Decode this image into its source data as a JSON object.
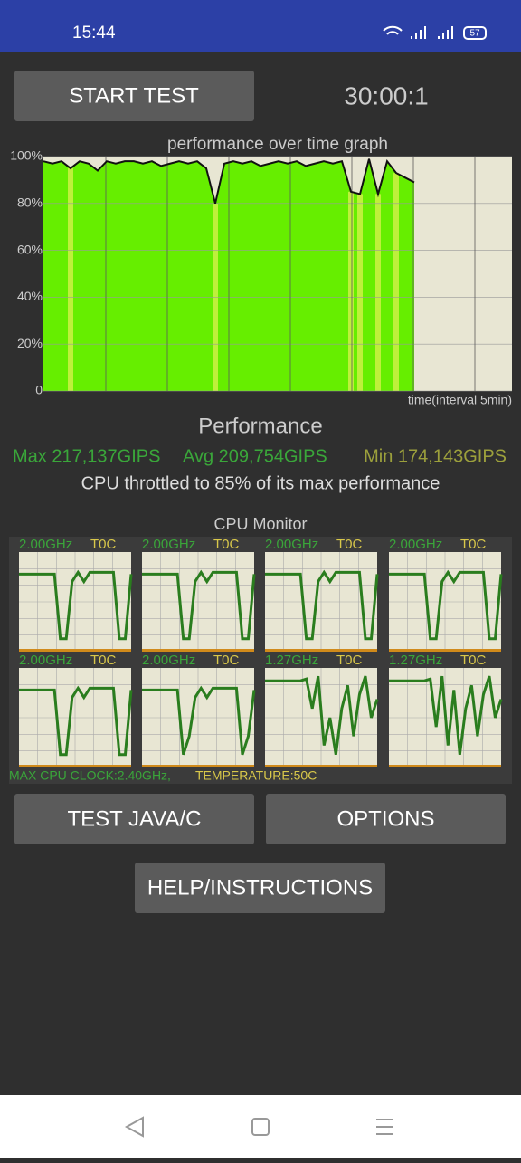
{
  "status_bar": {
    "time": "15:44",
    "battery": "57"
  },
  "start_button": "START TEST",
  "timer": "30:00:1",
  "performance_graph": {
    "type": "line",
    "title": "performance over time graph",
    "x_label": "time(interval 5min)",
    "ylim": [
      0,
      100
    ],
    "yticks": [
      {
        "value": 100,
        "label": "100%"
      },
      {
        "value": 80,
        "label": "80%"
      },
      {
        "value": 60,
        "label": "60%"
      },
      {
        "value": 40,
        "label": "40%"
      },
      {
        "value": 20,
        "label": "20%"
      },
      0
    ],
    "color": "#66ee00",
    "values": [
      98,
      97,
      98,
      95,
      98,
      97,
      94,
      98,
      97,
      98,
      98,
      97,
      98,
      96,
      97,
      98,
      97,
      98,
      95,
      80,
      97,
      98,
      97,
      98,
      96,
      97,
      98,
      97,
      98,
      96,
      97,
      98,
      97,
      98,
      85,
      84,
      99,
      84,
      98,
      93,
      91,
      89
    ]
  },
  "stats": {
    "title": "Performance",
    "max": "Max 217,137GIPS",
    "avg": "Avg 209,754GIPS",
    "min": "Min 174,143GIPS",
    "throttle": "CPU throttled to 85% of its max performance"
  },
  "cpu_monitor": {
    "title": "CPU Monitor",
    "ylim": [
      0,
      100
    ],
    "cores": [
      {
        "freq": "2.00GHz",
        "temp": "T0C",
        "values": [
          80,
          80,
          80,
          80,
          80,
          80,
          80,
          10,
          10,
          72,
          82,
          72,
          82,
          82,
          82,
          82,
          82,
          10,
          10,
          80
        ]
      },
      {
        "freq": "2.00GHz",
        "temp": "T0C",
        "values": [
          80,
          80,
          80,
          80,
          80,
          80,
          80,
          10,
          10,
          72,
          82,
          72,
          82,
          82,
          82,
          82,
          82,
          10,
          10,
          80
        ]
      },
      {
        "freq": "2.00GHz",
        "temp": "T0C",
        "values": [
          80,
          80,
          80,
          80,
          80,
          80,
          80,
          10,
          10,
          72,
          82,
          72,
          82,
          82,
          82,
          82,
          82,
          10,
          10,
          80
        ]
      },
      {
        "freq": "2.00GHz",
        "temp": "T0C",
        "values": [
          80,
          80,
          80,
          80,
          80,
          80,
          80,
          10,
          10,
          72,
          82,
          72,
          82,
          82,
          82,
          82,
          82,
          10,
          10,
          80
        ]
      },
      {
        "freq": "2.00GHz",
        "temp": "T0C",
        "values": [
          80,
          80,
          80,
          80,
          80,
          80,
          80,
          10,
          10,
          72,
          82,
          72,
          82,
          82,
          82,
          82,
          82,
          10,
          10,
          80
        ]
      },
      {
        "freq": "2.00GHz",
        "temp": "T0C",
        "values": [
          80,
          80,
          80,
          80,
          80,
          80,
          80,
          10,
          30,
          72,
          82,
          72,
          82,
          82,
          82,
          82,
          82,
          10,
          30,
          80
        ]
      },
      {
        "freq": "1.27GHz",
        "temp": "T0C",
        "values": [
          90,
          90,
          90,
          90,
          90,
          90,
          90,
          92,
          60,
          95,
          20,
          50,
          10,
          60,
          85,
          30,
          75,
          95,
          50,
          70
        ]
      },
      {
        "freq": "1.27GHz",
        "temp": "T0C",
        "values": [
          90,
          90,
          90,
          90,
          90,
          90,
          90,
          92,
          40,
          95,
          20,
          80,
          10,
          60,
          85,
          30,
          75,
          95,
          50,
          70
        ]
      }
    ],
    "max_clock": "MAX CPU CLOCK:2.40GHz,",
    "temperature": "TEMPERATURE:50C"
  },
  "buttons": {
    "java": "TEST JAVA/C",
    "options": "OPTIONS",
    "help": "HELP/INSTRUCTIONS"
  }
}
